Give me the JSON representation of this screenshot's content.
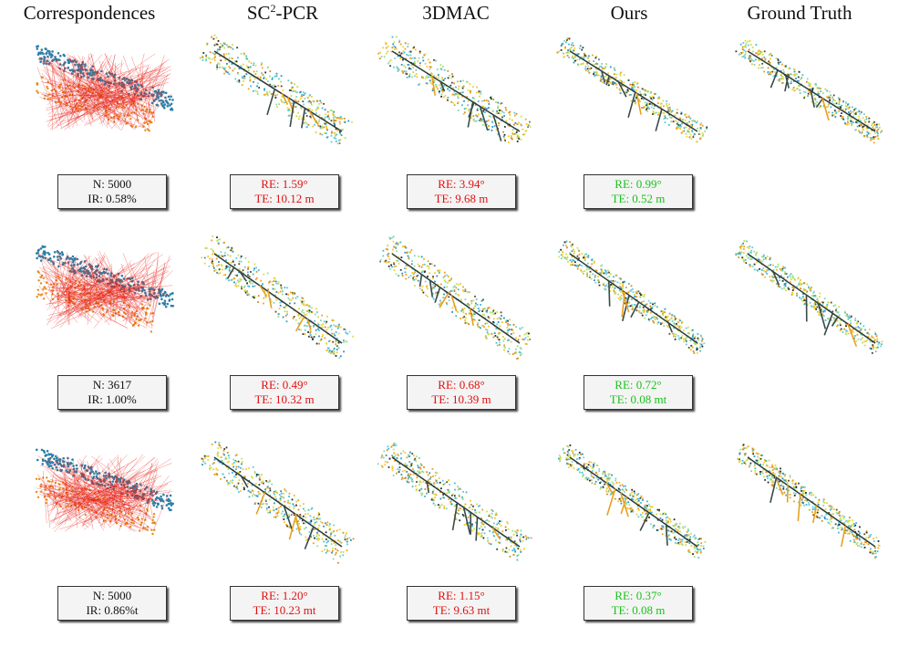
{
  "headers": {
    "correspondences": "Correspondences",
    "sc2_prefix": "SC",
    "sc2_sup": "2",
    "sc2_suffix": "-PCR",
    "dmac": "3DMAC",
    "ours": "Ours",
    "gt": "Ground Truth"
  },
  "rows": [
    {
      "corr": {
        "n": "N: 5000",
        "ir": "IR: 0.58%"
      },
      "sc2": {
        "re": "RE: 1.59°",
        "te": "TE: 10.12 m"
      },
      "dmac": {
        "re": "RE: 3.94°",
        "te": "TE: 9.68 m"
      },
      "ours": {
        "re": "RE: 0.99°",
        "te": "TE: 0.52 m"
      }
    },
    {
      "corr": {
        "n": "N: 3617",
        "ir": "IR: 1.00%"
      },
      "sc2": {
        "re": "RE: 0.49°",
        "te": "TE: 10.32 m"
      },
      "dmac": {
        "re": "RE: 0.68°",
        "te": "TE: 10.39 m"
      },
      "ours": {
        "re": "RE: 0.72°",
        "te": "TE: 0.08 mt"
      }
    },
    {
      "corr": {
        "n": "N: 5000",
        "ir": "IR: 0.86%t"
      },
      "sc2": {
        "re": "RE: 1.20°",
        "te": "TE: 10.23 mt"
      },
      "dmac": {
        "re": "RE: 1.15°",
        "te": "TE: 9.63 mt"
      },
      "ours": {
        "re": "RE: 0.37°",
        "te": "TE: 0.08 m"
      }
    }
  ],
  "colors": {
    "failure": "#e01010",
    "success": "#19c219",
    "inlier_line": "#e8231a",
    "source_cloud": "#2e7fa8",
    "target_cloud": "#e88a1c"
  }
}
